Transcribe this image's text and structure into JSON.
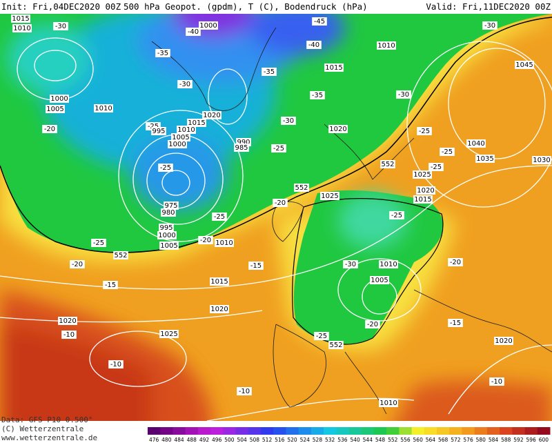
{
  "header": {
    "init": "Init: Fri,04DEC2020 00Z",
    "title": "500 hPa Geopot. (gpdm), T (C), Bodendruck (hPa)",
    "valid": "Valid: Fri,11DEC2020 00Z"
  },
  "footer": {
    "data": "Data: GFS P10 0.500°",
    "copyright": "(C) Wetterzentrale",
    "url": "www.wetterzentrale.de"
  },
  "scale": {
    "labels": [
      476,
      480,
      484,
      488,
      492,
      496,
      500,
      504,
      508,
      512,
      516,
      520,
      524,
      528,
      532,
      536,
      540,
      544,
      548,
      552,
      556,
      560,
      564,
      568,
      572,
      576,
      580,
      584,
      588,
      592,
      596,
      600
    ]
  },
  "map": {
    "labels": [
      "1015",
      "1010",
      "-30",
      "1000",
      "-40",
      "-35",
      "-45",
      "-40",
      "1010",
      "1015",
      "-35",
      "-35",
      "-30",
      "1000",
      "1005",
      "1010",
      "-20",
      "-25",
      "995",
      "1020",
      "1015",
      "1010",
      "1005",
      "1000",
      "990",
      "985",
      "-30",
      "1020",
      "-25",
      "-25",
      "975",
      "980",
      "552",
      "-20",
      "1025",
      "-25",
      "995",
      "1000",
      "1005",
      "-20",
      "1010",
      "-25",
      "552",
      "-20",
      "-15",
      "-15",
      "1015",
      "1020",
      "1020",
      "-10",
      "1025",
      "-10",
      "-10",
      "-30",
      "1010",
      "1005",
      "-20",
      "-25",
      "552",
      "1010",
      "-25",
      "1015",
      "1020",
      "1025",
      "552",
      "-25",
      "1035",
      "1040",
      "-25",
      "-25",
      "1030",
      "1045",
      "-30",
      "-30",
      "-20",
      "-15",
      "1020",
      "-10"
    ]
  }
}
